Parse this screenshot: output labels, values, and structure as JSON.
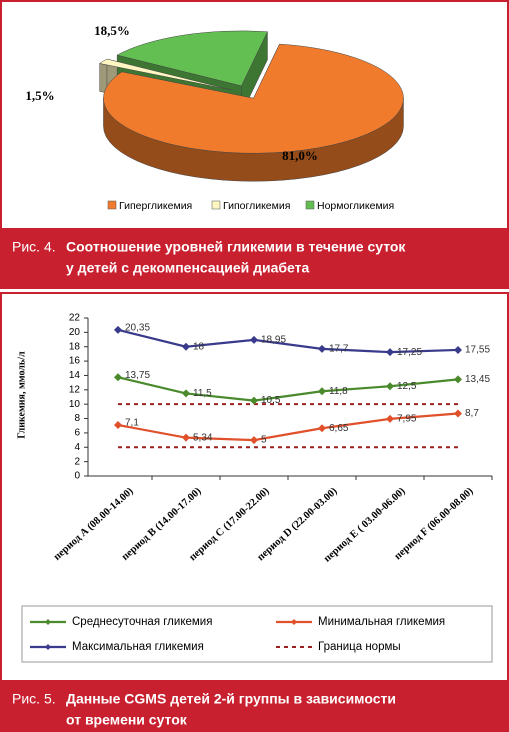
{
  "chart_data": [
    {
      "type": "pie",
      "categories": [
        "Гипергликемия",
        "Гипогликемия",
        "Нормогликемия"
      ],
      "values": [
        81.0,
        1.5,
        18.5
      ],
      "value_labels": [
        "81,0%",
        "1,5%",
        "18,5%"
      ],
      "colors": [
        "#f07b2c",
        "#fff6c2",
        "#63bf52"
      ],
      "caption_label": "Рис. 4.",
      "caption": [
        "Соотношение уровней гликемии в течение суток",
        "у детей с декомпенсацией диабета"
      ]
    },
    {
      "type": "line",
      "y_label": "Гликемия, ммоль/л",
      "categories": [
        "период A (08.00-14.00)",
        "период B (14.00-17.00)",
        "период C (17.00-22.00)",
        "период D (22.00-03.00)",
        "период E ( 03.00-06.00)",
        "период F (06.00-08.00)"
      ],
      "series": [
        {
          "name": "Среднесуточная гликемия",
          "color": "#4a8a2c",
          "values": [
            13.75,
            11.5,
            10.5,
            11.8,
            12.5,
            13.45
          ],
          "value_labels": [
            "13,75",
            "11,5",
            "10,5",
            "11,8",
            "12,5",
            "13,45"
          ]
        },
        {
          "name": "Минимальная гликемия",
          "color": "#e0502a",
          "values": [
            7.1,
            5.34,
            5,
            6.65,
            7.95,
            8.7
          ],
          "value_labels": [
            "7,1",
            "5,34",
            "5",
            "6,65",
            "7,95",
            "8,7"
          ]
        },
        {
          "name": "Максимальная гликемия",
          "color": "#3a3a8c",
          "values": [
            20.35,
            18,
            18.95,
            17.7,
            17.25,
            17.55
          ],
          "value_labels": [
            "20,35",
            "18",
            "18,95",
            "17,7",
            "17,25",
            "17,55"
          ]
        }
      ],
      "reference_lines": {
        "name": "Граница нормы",
        "color": "#9a1f1f",
        "values": [
          10,
          4
        ]
      },
      "ylim": [
        0,
        22
      ],
      "yticks": [
        0,
        2,
        4,
        6,
        8,
        10,
        12,
        14,
        16,
        18,
        20,
        22
      ],
      "grid": false,
      "caption_label": "Рис. 5.",
      "caption": [
        "Данные CGMS детей 2-й группы в зависимости",
        "от времени суток"
      ]
    }
  ]
}
